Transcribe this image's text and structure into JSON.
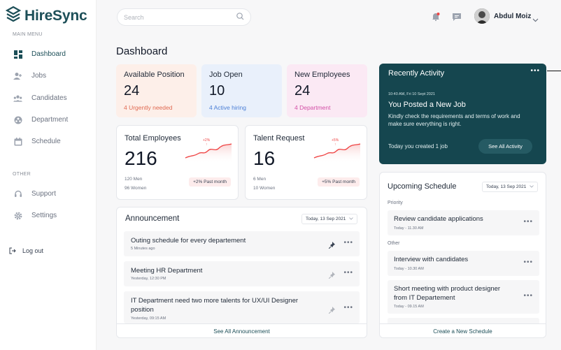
{
  "app": {
    "name": "HireSync",
    "brand_color": "#1d4f58"
  },
  "sidebar": {
    "main_menu_label": "MAIN MENU",
    "items": [
      {
        "label": "Dashboard",
        "icon": "dashboard-icon",
        "active": true
      },
      {
        "label": "Jobs",
        "icon": "jobs-icon"
      },
      {
        "label": "Candidates",
        "icon": "candidates-icon"
      },
      {
        "label": "Department",
        "icon": "department-icon"
      },
      {
        "label": "Schedule",
        "icon": "schedule-icon"
      }
    ],
    "other_label": "OTHER",
    "other_items": [
      {
        "label": "Support",
        "icon": "support-icon"
      },
      {
        "label": "Settings",
        "icon": "settings-icon"
      }
    ],
    "logout_label": "Log out"
  },
  "header": {
    "search_placeholder": "Search",
    "user_name": "Abdul Moiz"
  },
  "page_title": "Dashboard",
  "stats": [
    {
      "title": "Available Position",
      "value": "24",
      "sub": "4 Urgently needed",
      "bg": "#fdefe9",
      "sub_color": "#e06a52"
    },
    {
      "title": "Job Open",
      "value": "10",
      "sub": "4 Active hiring",
      "bg": "#e9f0fb",
      "sub_color": "#4b7fd6"
    },
    {
      "title": "New Employees",
      "value": "24",
      "sub": "4 Department",
      "bg": "#fbe9f4",
      "sub_color": "#d24ea6"
    }
  ],
  "total_employees": {
    "title": "Total Employees",
    "value": "216",
    "men": "120 Men",
    "women": "96 Women",
    "badge": "+2% Past month",
    "spark_label": "+2%"
  },
  "talent_request": {
    "title": "Talent Request",
    "value": "16",
    "men": "6 Men",
    "women": "10 Women",
    "badge": "+5% Past month",
    "spark_label": "+5%"
  },
  "announcement": {
    "title": "Announcement",
    "date": "Today, 13 Sep 2021",
    "items": [
      {
        "title": "Outing schedule for every departement",
        "time": "5 Minutes ago",
        "pinned": true
      },
      {
        "title": "Meeting HR Department",
        "time": "Yesterday, 12:30 PM",
        "pinned": false
      },
      {
        "title": "IT Department need two more talents for UX/UI Designer position",
        "time": "Yesterday, 09:15 AM",
        "pinned": false
      }
    ],
    "footer": "See All Announcement"
  },
  "recent_activity": {
    "title": "Recently Activity",
    "time": "10:40 AM, Fri 10 Sept 2021",
    "headline": "You Posted a New Job",
    "body": "Kindly check the requirements and terms of work and make sure everything is right.",
    "summary": "Today you created 1 job",
    "button": "See All Activity",
    "bg": "#15464f"
  },
  "schedule": {
    "title": "Upcoming Schedule",
    "date": "Today, 13 Sep 2021",
    "priority_label": "Priority",
    "other_label": "Other",
    "priority_items": [
      {
        "title": "Review candidate applications",
        "time": "Today - 11.30 AM"
      }
    ],
    "other_items": [
      {
        "title": "Interview with candidates",
        "time": "Today - 10.30 AM"
      },
      {
        "title": "Short meeting with product designer from IT Departement",
        "time": "Today - 09.15 AM"
      }
    ],
    "footer": "Create a New Schedule"
  }
}
